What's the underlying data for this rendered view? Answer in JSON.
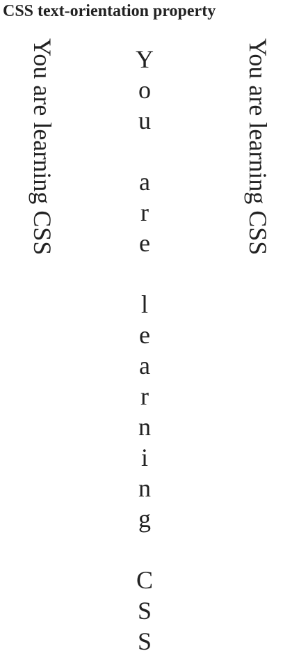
{
  "page": {
    "title": "CSS text-orientation property"
  },
  "columns": {
    "left": {
      "text": "You are learning CSS",
      "orientation": "mixed"
    },
    "middle": {
      "text": "You are learning CSS",
      "orientation": "upright"
    },
    "right": {
      "text": "You are learning CSS",
      "orientation": "sideways"
    }
  }
}
